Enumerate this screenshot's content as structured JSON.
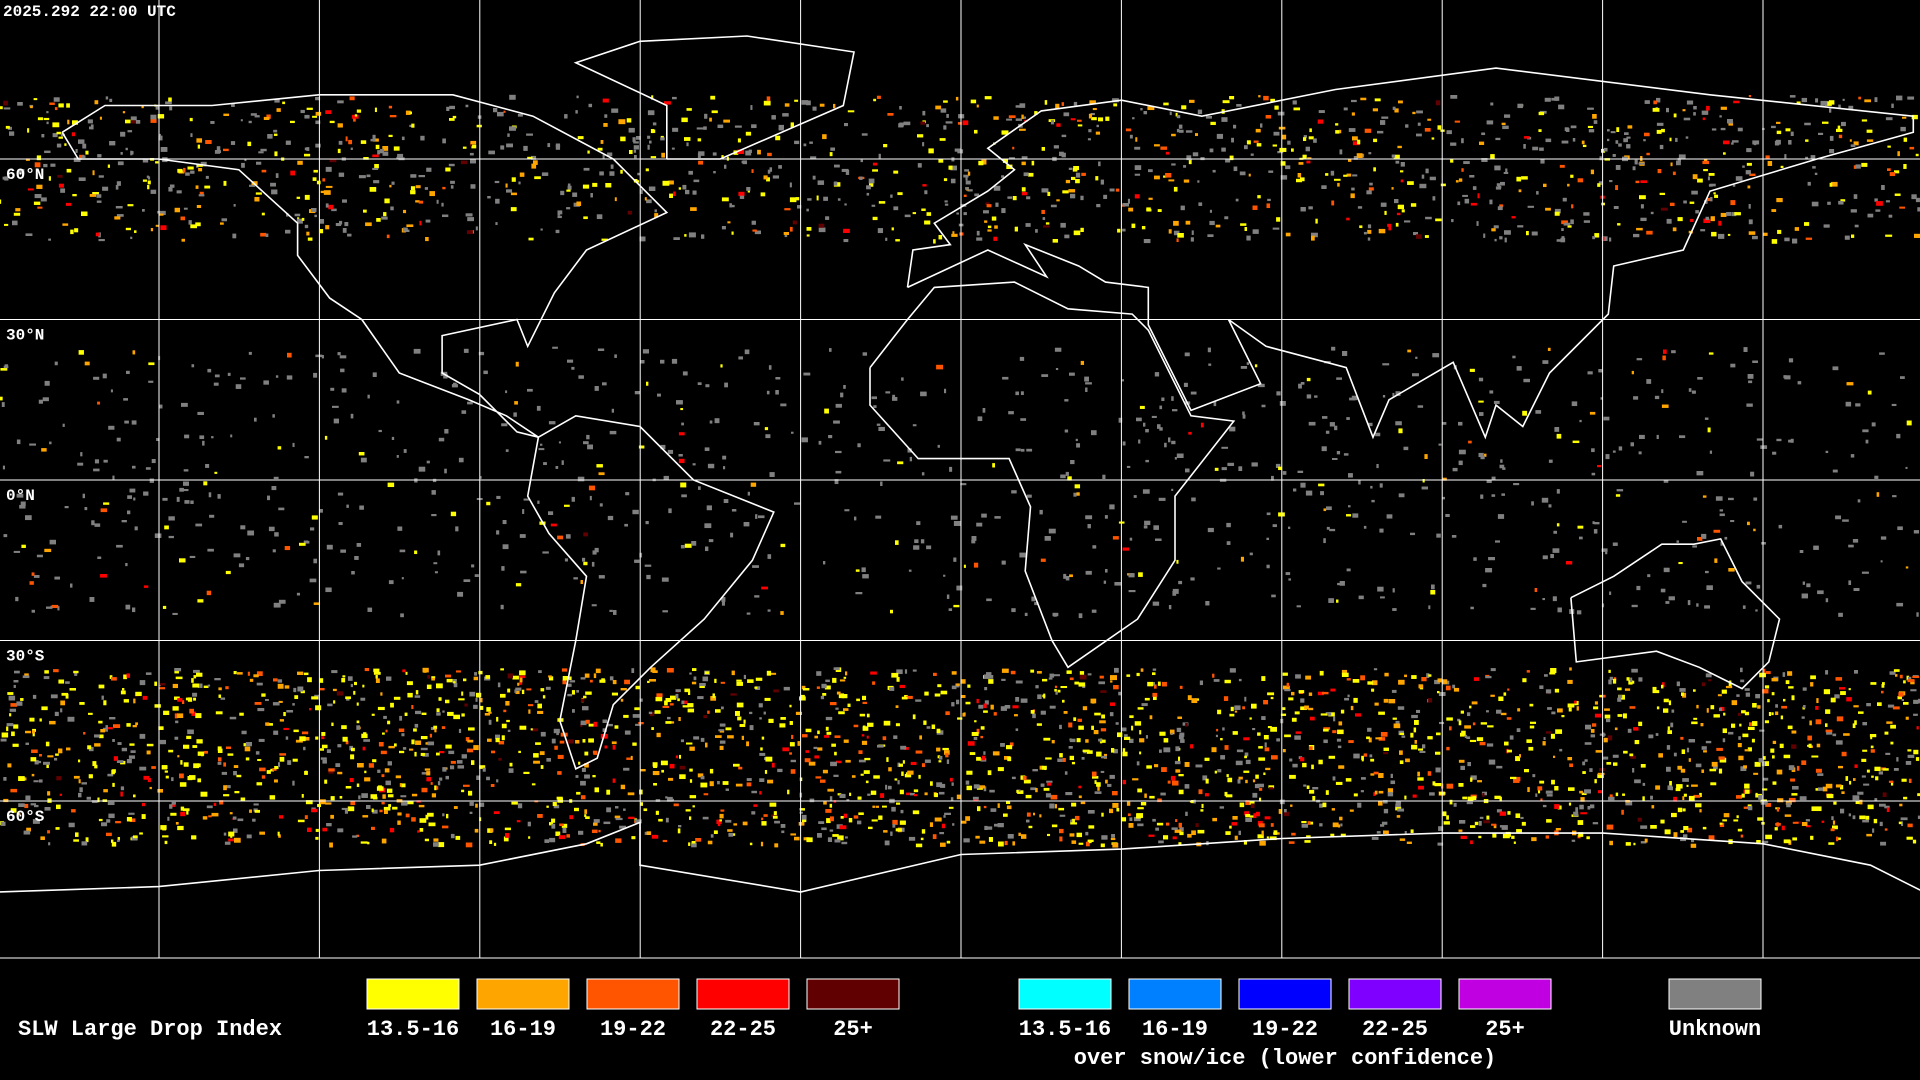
{
  "header": {
    "timestamp": "2025.292 22:00 UTC"
  },
  "map": {
    "latitude_labels": [
      "60°N",
      "30°N",
      "0°N",
      "30°S",
      "60°S"
    ]
  },
  "legend": {
    "title": "SLW Large Drop Index",
    "groups": [
      {
        "items": [
          {
            "label": "13.5-16",
            "color": "#ffff00"
          },
          {
            "label": "16-19",
            "color": "#ffa500"
          },
          {
            "label": "19-22",
            "color": "#ff5500"
          },
          {
            "label": "22-25",
            "color": "#ff0000"
          },
          {
            "label": "25+",
            "color": "#600000"
          }
        ]
      },
      {
        "items": [
          {
            "label": "13.5-16",
            "color": "#00ffff"
          },
          {
            "label": "16-19",
            "color": "#0080ff"
          },
          {
            "label": "19-22",
            "color": "#0000ff"
          },
          {
            "label": "22-25",
            "color": "#8000ff"
          },
          {
            "label": "25+",
            "color": "#c000e0"
          }
        ],
        "caption": "over snow/ice (lower confidence)"
      },
      {
        "items": [
          {
            "label": "Unknown",
            "color": "#808080"
          }
        ]
      }
    ]
  }
}
